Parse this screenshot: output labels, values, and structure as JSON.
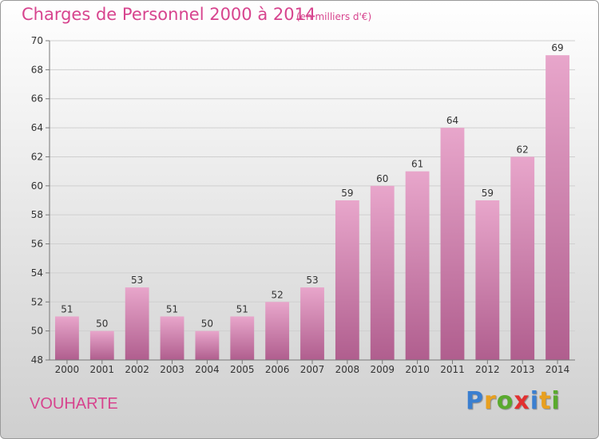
{
  "header": {
    "title": "Charges de Personnel 2000 à 2014",
    "subtitle": "(en milliers d'€)"
  },
  "footer": {
    "commune": "VOUHARTE",
    "logo_letters": [
      "P",
      "r",
      "o",
      "x",
      "i",
      "t",
      "i"
    ],
    "logo_colors": [
      "#3a7fd0",
      "#e8a020",
      "#5aaa2e",
      "#e23030",
      "#3a7fd0",
      "#e8a020",
      "#5aaa2e"
    ]
  },
  "colors": {
    "accent": "#d7448e",
    "bar_top": "#e8a6cb",
    "bar_bottom": "#b05e8e",
    "grid": "#cfcfcf",
    "text": "#333333"
  },
  "chart_data": {
    "type": "bar",
    "categories": [
      "2000",
      "2001",
      "2002",
      "2003",
      "2004",
      "2005",
      "2006",
      "2007",
      "2008",
      "2009",
      "2010",
      "2011",
      "2012",
      "2013",
      "2014"
    ],
    "values": [
      51,
      50,
      53,
      51,
      50,
      51,
      52,
      53,
      59,
      60,
      61,
      64,
      59,
      62,
      69
    ],
    "ylim": [
      48,
      70
    ],
    "yticks": [
      48,
      50,
      52,
      54,
      56,
      58,
      60,
      62,
      64,
      66,
      68,
      70
    ],
    "grid": true,
    "data_labels": true
  }
}
